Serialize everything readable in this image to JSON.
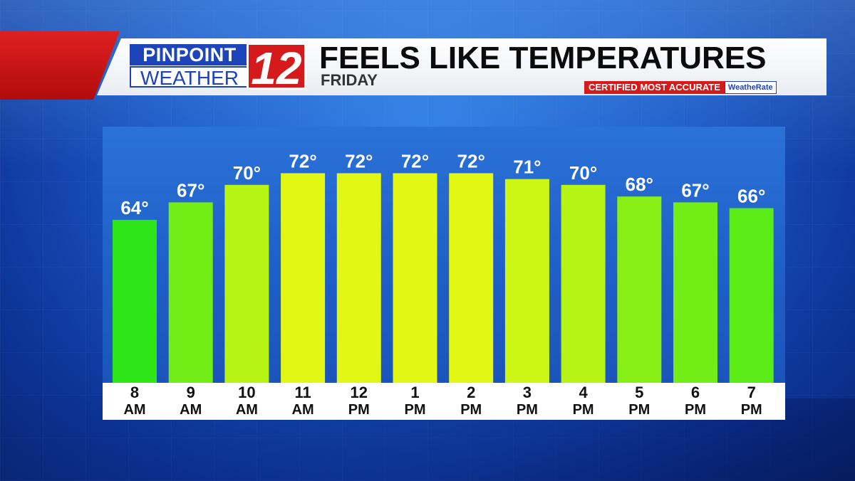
{
  "header": {
    "logo_top": "PINPOINT",
    "logo_bottom": "WEATHER",
    "logo_number": "12",
    "title": "FEELS LIKE TEMPERATURES",
    "subtitle": "FRIDAY",
    "badge_text": "CERTIFIED MOST ACCURATE",
    "badge_brand": "WeatheRate"
  },
  "colors": {
    "accent_red": "#d41a1a",
    "brand_blue": "#1d44b8",
    "bar_low": "#2ee617",
    "bar_high": "#e2f814"
  },
  "chart_data": {
    "type": "bar",
    "title": "FEELS LIKE TEMPERATURES",
    "subtitle": "FRIDAY",
    "categories": [
      [
        "8",
        "AM"
      ],
      [
        "9",
        "AM"
      ],
      [
        "10",
        "AM"
      ],
      [
        "11",
        "AM"
      ],
      [
        "12",
        "PM"
      ],
      [
        "1",
        "PM"
      ],
      [
        "2",
        "PM"
      ],
      [
        "3",
        "PM"
      ],
      [
        "4",
        "PM"
      ],
      [
        "5",
        "PM"
      ],
      [
        "6",
        "PM"
      ],
      [
        "7",
        "PM"
      ]
    ],
    "values": [
      64,
      67,
      70,
      72,
      72,
      72,
      72,
      71,
      70,
      68,
      67,
      66
    ],
    "value_suffix": "°",
    "xlabel": "",
    "ylabel": "",
    "ylim": [
      36,
      80
    ],
    "grid": false,
    "legend": "none"
  }
}
